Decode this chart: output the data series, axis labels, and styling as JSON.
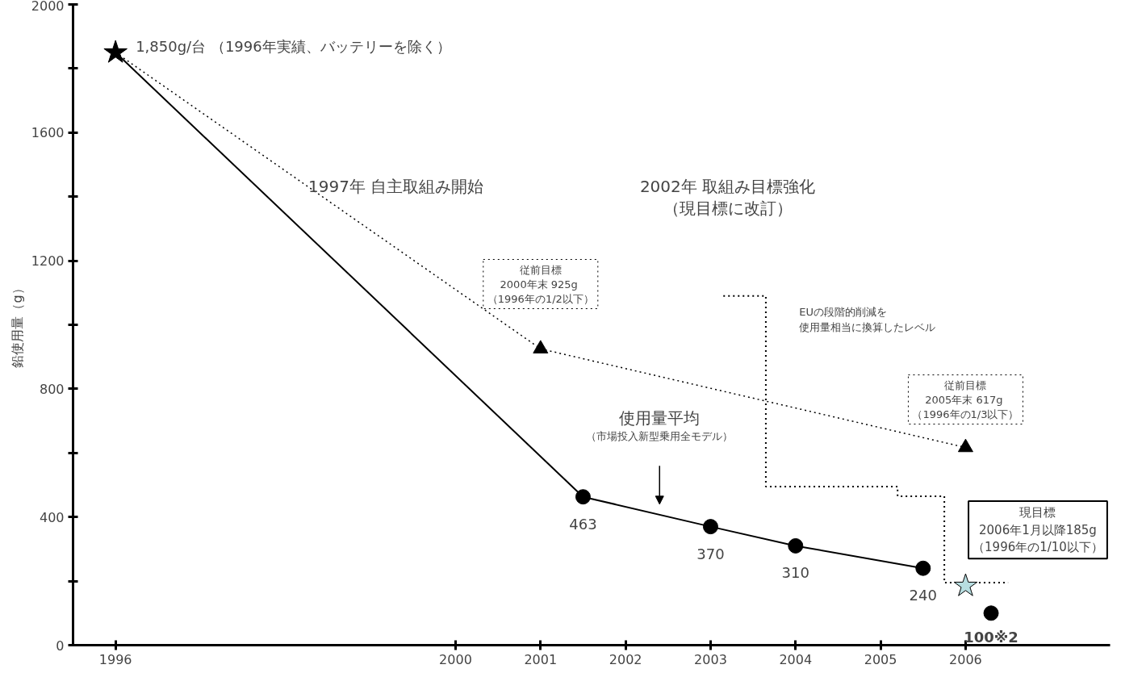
{
  "chart_data": {
    "type": "line",
    "ylabel": "鉛使用量（g）",
    "xlim": [
      1995.5,
      2007.7
    ],
    "ylim": [
      0,
      2000
    ],
    "xticks": [
      1996,
      2000,
      2001,
      2002,
      2003,
      2004,
      2005,
      2006
    ],
    "yticks": [
      0,
      {
        "value": 200,
        "label": null
      },
      400,
      {
        "value": 600,
        "label": null
      },
      800,
      {
        "value": 1000,
        "label": null
      },
      1200,
      {
        "value": 1400,
        "label": null
      },
      1600,
      {
        "value": 1800,
        "label": null
      },
      2000
    ],
    "grid": false,
    "series": [
      {
        "name": "使用量平均",
        "color": "#000000",
        "marker": "none",
        "line_style": "solid",
        "x": [
          1996,
          2001.5,
          2003,
          2004,
          2005.5
        ],
        "values": [
          1850,
          463,
          370,
          310,
          240
        ]
      },
      {
        "type": "scatter",
        "color": "#000000",
        "marker": "circle",
        "x": [
          2001.5,
          2003,
          2004,
          2005.5
        ],
        "values": [
          463,
          370,
          310,
          240
        ],
        "value_labels": [
          "463",
          "370",
          "310",
          "240"
        ]
      },
      {
        "type": "scatter",
        "color": "#000000",
        "marker": "star",
        "x": [
          1996
        ],
        "values": [
          1850
        ]
      },
      {
        "color": "#000000",
        "marker": "none",
        "line_style": "dotted",
        "x": [
          1996,
          2001,
          2006
        ],
        "values": [
          1850,
          925,
          617
        ]
      },
      {
        "type": "scatter",
        "color": "#000000",
        "marker": "triangle",
        "x": [
          2001,
          2006
        ],
        "values": [
          925,
          617
        ]
      },
      {
        "type": "step",
        "color": "#000000",
        "marker": "none",
        "line_style": "dotted",
        "x": [
          2003.15,
          2003.65,
          2005.2,
          2005.75,
          2006.5
        ],
        "values": [
          1090,
          495,
          465,
          195,
          195
        ]
      },
      {
        "type": "scatter",
        "color": "#b7dde0",
        "marker": "star",
        "x": [
          2006
        ],
        "values": [
          185
        ]
      },
      {
        "type": "scatter",
        "color": "#000000",
        "marker": "circle",
        "x": [
          2006.3
        ],
        "values": [
          100
        ],
        "value_labels": [
          "100※2"
        ]
      }
    ],
    "annotations": [
      {
        "text": "1,850g/台 （1996年実績、バッテリーを除く）",
        "x": 1996,
        "y": 1850
      },
      "1997年 自主取組み開始",
      "2002年 取組み目標強化",
      "（現目標に改訂）",
      "従前目標\n2000年末  925g\n（1996年の1/2以下）",
      "EUの段階的削減を",
      "使用量相当に換算したレベル",
      "従前目標\n2005年末  617g\n（1996年の1/3以下）",
      "（市場投入新型乗用全モデル）",
      "現目標\n2006年1月以降185g\n（1996年の1/10以下）"
    ]
  }
}
